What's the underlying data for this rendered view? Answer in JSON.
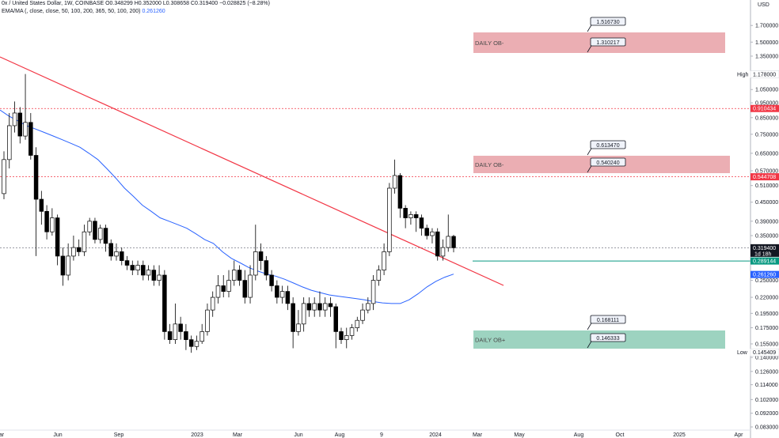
{
  "header": {
    "symbol_line_prefix": "0x / United States Dollar, 1W, COINBASE  O",
    "open": "0.348299",
    "high": "0.352000",
    "low": "0.308658",
    "close": "0.319400",
    "change": "−0.028825 (−8.28%)",
    "indicator_label": "EMA/MA (, close, close, 50, 100, 200, 365, 50, 100, 200)",
    "indicator_value": "0.261260"
  },
  "header_line1": "0x / United States Dollar, 1W, COINBASE  O0.348299  H0.352000  L0.308658  C0.319400  −0.028825 (−8.28%)",
  "currency": "USD",
  "colors": {
    "up_candle": "#ffffff",
    "down_candle": "#000000",
    "trendline": "#f23645",
    "ema": "#2962ff",
    "support_line": "#089981",
    "bearish_zone": "#e8a0a6",
    "bullish_zone": "#8ccbb5",
    "resistance_dotted": "#f23645"
  },
  "chart_data": {
    "type": "candlestick",
    "y_scale": "log",
    "ylim": [
      0.083,
      1.85
    ],
    "y_ticks": [
      "1.700000",
      "1.500000",
      "1.350000",
      "1.050000",
      "0.950000",
      "0.850000",
      "0.750000",
      "0.650000",
      "0.570000",
      "0.510000",
      "0.450000",
      "0.390000",
      "0.350000",
      "0.250000",
      "0.220000",
      "0.195000",
      "0.175000",
      "0.155000",
      "0.140000",
      "0.126000",
      "0.114000",
      "0.102000",
      "0.092000",
      "0.083000"
    ],
    "x_ticks": [
      "ar",
      "Jun",
      "Sep",
      "2023",
      "Mar",
      "Jun",
      "Aug",
      "9",
      "2024",
      "Mar",
      "May",
      "Aug",
      "Oct",
      "2025",
      "Apr"
    ],
    "candles": [
      [
        0.48,
        0.62,
        0.66,
        0.46
      ],
      [
        0.62,
        0.8,
        0.88,
        0.58
      ],
      [
        0.8,
        0.88,
        0.96,
        0.76
      ],
      [
        0.88,
        0.74,
        0.92,
        0.7
      ],
      [
        0.74,
        0.82,
        1.18,
        0.72
      ],
      [
        0.82,
        0.64,
        0.88,
        0.62
      ],
      [
        0.64,
        0.46,
        0.68,
        0.3
      ],
      [
        0.46,
        0.42,
        0.49,
        0.38
      ],
      [
        0.42,
        0.36,
        0.44,
        0.34
      ],
      [
        0.36,
        0.4,
        0.43,
        0.35
      ],
      [
        0.4,
        0.3,
        0.41,
        0.28
      ],
      [
        0.3,
        0.26,
        0.32,
        0.24
      ],
      [
        0.26,
        0.3,
        0.33,
        0.25
      ],
      [
        0.3,
        0.32,
        0.35,
        0.29
      ],
      [
        0.32,
        0.31,
        0.34,
        0.3
      ],
      [
        0.31,
        0.36,
        0.38,
        0.3
      ],
      [
        0.36,
        0.39,
        0.4,
        0.35
      ],
      [
        0.39,
        0.34,
        0.4,
        0.33
      ],
      [
        0.34,
        0.37,
        0.38,
        0.33
      ],
      [
        0.37,
        0.33,
        0.38,
        0.31
      ],
      [
        0.33,
        0.3,
        0.34,
        0.29
      ],
      [
        0.3,
        0.31,
        0.33,
        0.29
      ],
      [
        0.31,
        0.29,
        0.32,
        0.28
      ],
      [
        0.29,
        0.28,
        0.3,
        0.27
      ],
      [
        0.28,
        0.27,
        0.29,
        0.26
      ],
      [
        0.27,
        0.28,
        0.29,
        0.26
      ],
      [
        0.28,
        0.26,
        0.29,
        0.25
      ],
      [
        0.26,
        0.27,
        0.28,
        0.25
      ],
      [
        0.27,
        0.25,
        0.28,
        0.24
      ],
      [
        0.25,
        0.26,
        0.28,
        0.24
      ],
      [
        0.26,
        0.17,
        0.27,
        0.16
      ],
      [
        0.17,
        0.16,
        0.18,
        0.155
      ],
      [
        0.16,
        0.18,
        0.21,
        0.155
      ],
      [
        0.18,
        0.17,
        0.19,
        0.16
      ],
      [
        0.17,
        0.16,
        0.18,
        0.148
      ],
      [
        0.16,
        0.152,
        0.165,
        0.145
      ],
      [
        0.152,
        0.158,
        0.165,
        0.148
      ],
      [
        0.158,
        0.17,
        0.18,
        0.155
      ],
      [
        0.17,
        0.2,
        0.21,
        0.165
      ],
      [
        0.2,
        0.22,
        0.23,
        0.19
      ],
      [
        0.22,
        0.24,
        0.26,
        0.21
      ],
      [
        0.24,
        0.23,
        0.26,
        0.22
      ],
      [
        0.23,
        0.25,
        0.27,
        0.22
      ],
      [
        0.25,
        0.27,
        0.29,
        0.24
      ],
      [
        0.27,
        0.25,
        0.28,
        0.24
      ],
      [
        0.25,
        0.22,
        0.27,
        0.21
      ],
      [
        0.22,
        0.26,
        0.28,
        0.21
      ],
      [
        0.26,
        0.31,
        0.38,
        0.25
      ],
      [
        0.31,
        0.29,
        0.33,
        0.27
      ],
      [
        0.29,
        0.26,
        0.3,
        0.25
      ],
      [
        0.26,
        0.24,
        0.27,
        0.23
      ],
      [
        0.24,
        0.22,
        0.25,
        0.21
      ],
      [
        0.22,
        0.23,
        0.24,
        0.21
      ],
      [
        0.23,
        0.21,
        0.24,
        0.2
      ],
      [
        0.21,
        0.17,
        0.22,
        0.15
      ],
      [
        0.17,
        0.18,
        0.2,
        0.165
      ],
      [
        0.18,
        0.21,
        0.22,
        0.17
      ],
      [
        0.21,
        0.2,
        0.22,
        0.19
      ],
      [
        0.2,
        0.21,
        0.22,
        0.19
      ],
      [
        0.21,
        0.2,
        0.23,
        0.19
      ],
      [
        0.2,
        0.21,
        0.22,
        0.19
      ],
      [
        0.21,
        0.205,
        0.22,
        0.19
      ],
      [
        0.205,
        0.17,
        0.21,
        0.15
      ],
      [
        0.17,
        0.16,
        0.175,
        0.155
      ],
      [
        0.16,
        0.165,
        0.175,
        0.15
      ],
      [
        0.165,
        0.175,
        0.18,
        0.16
      ],
      [
        0.175,
        0.185,
        0.19,
        0.17
      ],
      [
        0.185,
        0.2,
        0.21,
        0.18
      ],
      [
        0.2,
        0.21,
        0.22,
        0.195
      ],
      [
        0.21,
        0.25,
        0.26,
        0.2
      ],
      [
        0.25,
        0.27,
        0.28,
        0.24
      ],
      [
        0.27,
        0.31,
        0.33,
        0.26
      ],
      [
        0.31,
        0.5,
        0.52,
        0.3
      ],
      [
        0.5,
        0.55,
        0.62,
        0.48
      ],
      [
        0.55,
        0.43,
        0.56,
        0.4
      ],
      [
        0.43,
        0.4,
        0.44,
        0.37
      ],
      [
        0.4,
        0.41,
        0.42,
        0.38
      ],
      [
        0.41,
        0.4,
        0.42,
        0.36
      ],
      [
        0.4,
        0.37,
        0.41,
        0.35
      ],
      [
        0.37,
        0.35,
        0.38,
        0.34
      ],
      [
        0.35,
        0.36,
        0.37,
        0.33
      ],
      [
        0.36,
        0.3,
        0.37,
        0.29
      ],
      [
        0.3,
        0.32,
        0.34,
        0.29
      ],
      [
        0.32,
        0.348,
        0.41,
        0.31
      ],
      [
        0.348,
        0.3194,
        0.352,
        0.3087
      ]
    ],
    "ema": [
      0.9,
      0.86,
      0.83,
      0.8,
      0.78,
      0.76,
      0.74,
      0.72,
      0.7,
      0.68,
      0.65,
      0.62,
      0.58,
      0.54,
      0.5,
      0.47,
      0.44,
      0.42,
      0.4,
      0.39,
      0.38,
      0.37,
      0.355,
      0.34,
      0.33,
      0.31,
      0.295,
      0.285,
      0.275,
      0.268,
      0.262,
      0.258,
      0.252,
      0.245,
      0.238,
      0.232,
      0.228,
      0.224,
      0.222,
      0.22,
      0.218,
      0.216,
      0.213,
      0.211,
      0.21,
      0.21,
      0.216,
      0.226,
      0.238,
      0.248,
      0.256,
      0.262
    ],
    "ema_x": [
      0,
      8,
      16,
      24,
      32,
      40,
      48,
      56,
      64,
      72,
      80,
      88,
      96,
      104,
      112,
      120,
      128,
      136,
      144,
      152,
      160,
      168,
      176,
      184,
      192,
      200,
      208,
      216,
      224,
      232,
      240,
      248,
      256,
      264,
      272,
      280,
      288,
      296,
      304,
      312,
      320,
      328,
      336,
      344,
      352,
      360,
      368,
      376,
      384,
      392,
      400,
      408
    ],
    "trendline": [
      [
        0,
        0.89
      ],
      [
        636,
        0.225
      ]
    ],
    "horizontal_levels": [
      {
        "value": 0.910434,
        "label": "0.910434",
        "style": "dotted",
        "color": "#f23645"
      },
      {
        "value": 0.544708,
        "label": "0.544708",
        "style": "dotted",
        "color": "#f23645"
      },
      {
        "value": 0.289144,
        "label": "0.289144",
        "style": "solid",
        "color": "#089981"
      },
      {
        "value": 0.3194,
        "label": "0.319400",
        "style": "dotted",
        "color": "#787b86"
      }
    ],
    "zones": [
      {
        "label": "DAILY OB-",
        "top": 1.51673,
        "bottom": 1.310217,
        "color": "#e8a0a6",
        "callout_top": "1.516730",
        "callout_bottom": "1.310217"
      },
      {
        "label": "DAILY OB-",
        "top": 0.61347,
        "bottom": 0.54024,
        "color": "#e8a0a6",
        "callout_top": "0.613470",
        "callout_bottom": "0.540240"
      },
      {
        "label": "DAILY OB+",
        "top": 0.168111,
        "bottom": 0.146333,
        "color": "#8ccbb5",
        "callout_top": "0.168111",
        "callout_bottom": "0.146333"
      }
    ],
    "price_tags": [
      {
        "value": 0.910434,
        "label": "0.910434",
        "bg": "#f23645",
        "fg": "#ffffff"
      },
      {
        "value": 0.544708,
        "label": "0.544708",
        "bg": "#f23645",
        "fg": "#ffffff"
      },
      {
        "value": 0.3194,
        "label": "0.319400",
        "sub": "1d 18h",
        "bg": "#131722",
        "fg": "#ffffff"
      },
      {
        "value": 0.289144,
        "label": "0.289144",
        "bg": "#089981",
        "fg": "#ffffff"
      },
      {
        "value": 0.26126,
        "label": "0.261260",
        "bg": "#2962ff",
        "fg": "#ffffff"
      }
    ],
    "high_label": {
      "value": 1.178,
      "text": "High",
      "price": "1.178000"
    },
    "low_label": {
      "value": 0.145409,
      "text": "Low",
      "price": "0.145409"
    }
  }
}
